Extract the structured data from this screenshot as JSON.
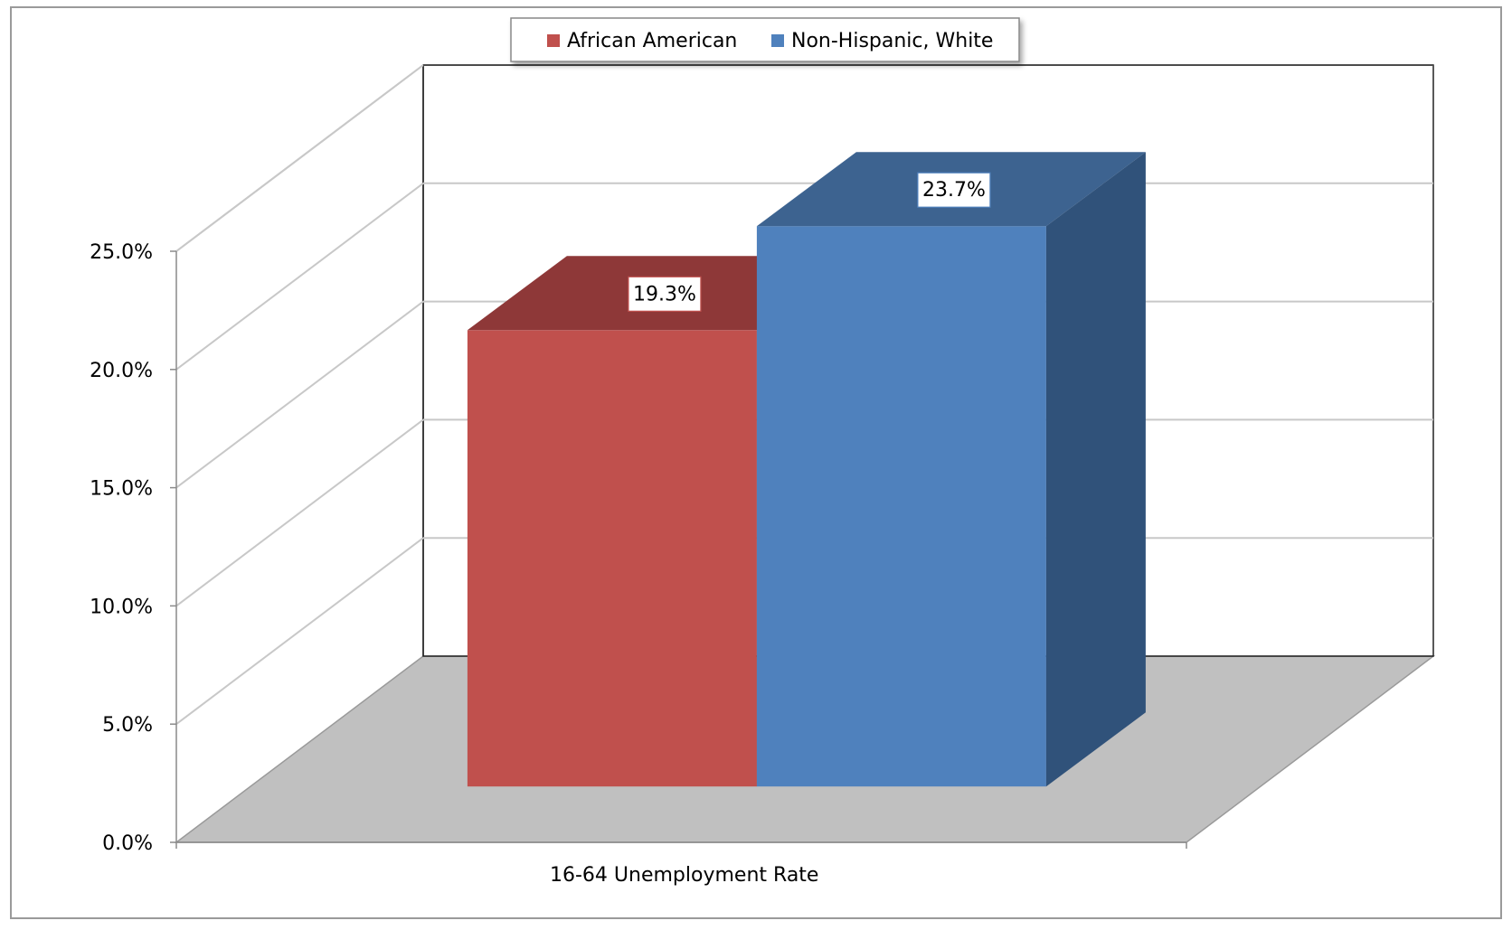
{
  "chart_data": {
    "type": "bar",
    "subtype": "3d-clustered-column",
    "categories": [
      "16-64 Unemployment Rate"
    ],
    "series": [
      {
        "name": "African American",
        "values": [
          19.3
        ],
        "color": "#C0504D",
        "top_color": "#8E3838",
        "side_color": "#7A2F2F",
        "data_label": "19.3%"
      },
      {
        "name": "Non-Hispanic, White",
        "values": [
          23.7
        ],
        "color": "#4F81BD",
        "top_color": "#3D6390",
        "side_color": "#30527A",
        "data_label": "23.7%"
      }
    ],
    "yticks": [
      "0.0%",
      "5.0%",
      "10.0%",
      "15.0%",
      "20.0%",
      "25.0%"
    ],
    "ytick_values": [
      0,
      5,
      10,
      15,
      20,
      25
    ],
    "ylim": [
      0,
      25
    ],
    "grid": true,
    "legend_position": "top",
    "floor_color": "#C0C0C0",
    "grid_color": "#C8C8C8",
    "title": "",
    "xlabel": "",
    "ylabel": ""
  }
}
